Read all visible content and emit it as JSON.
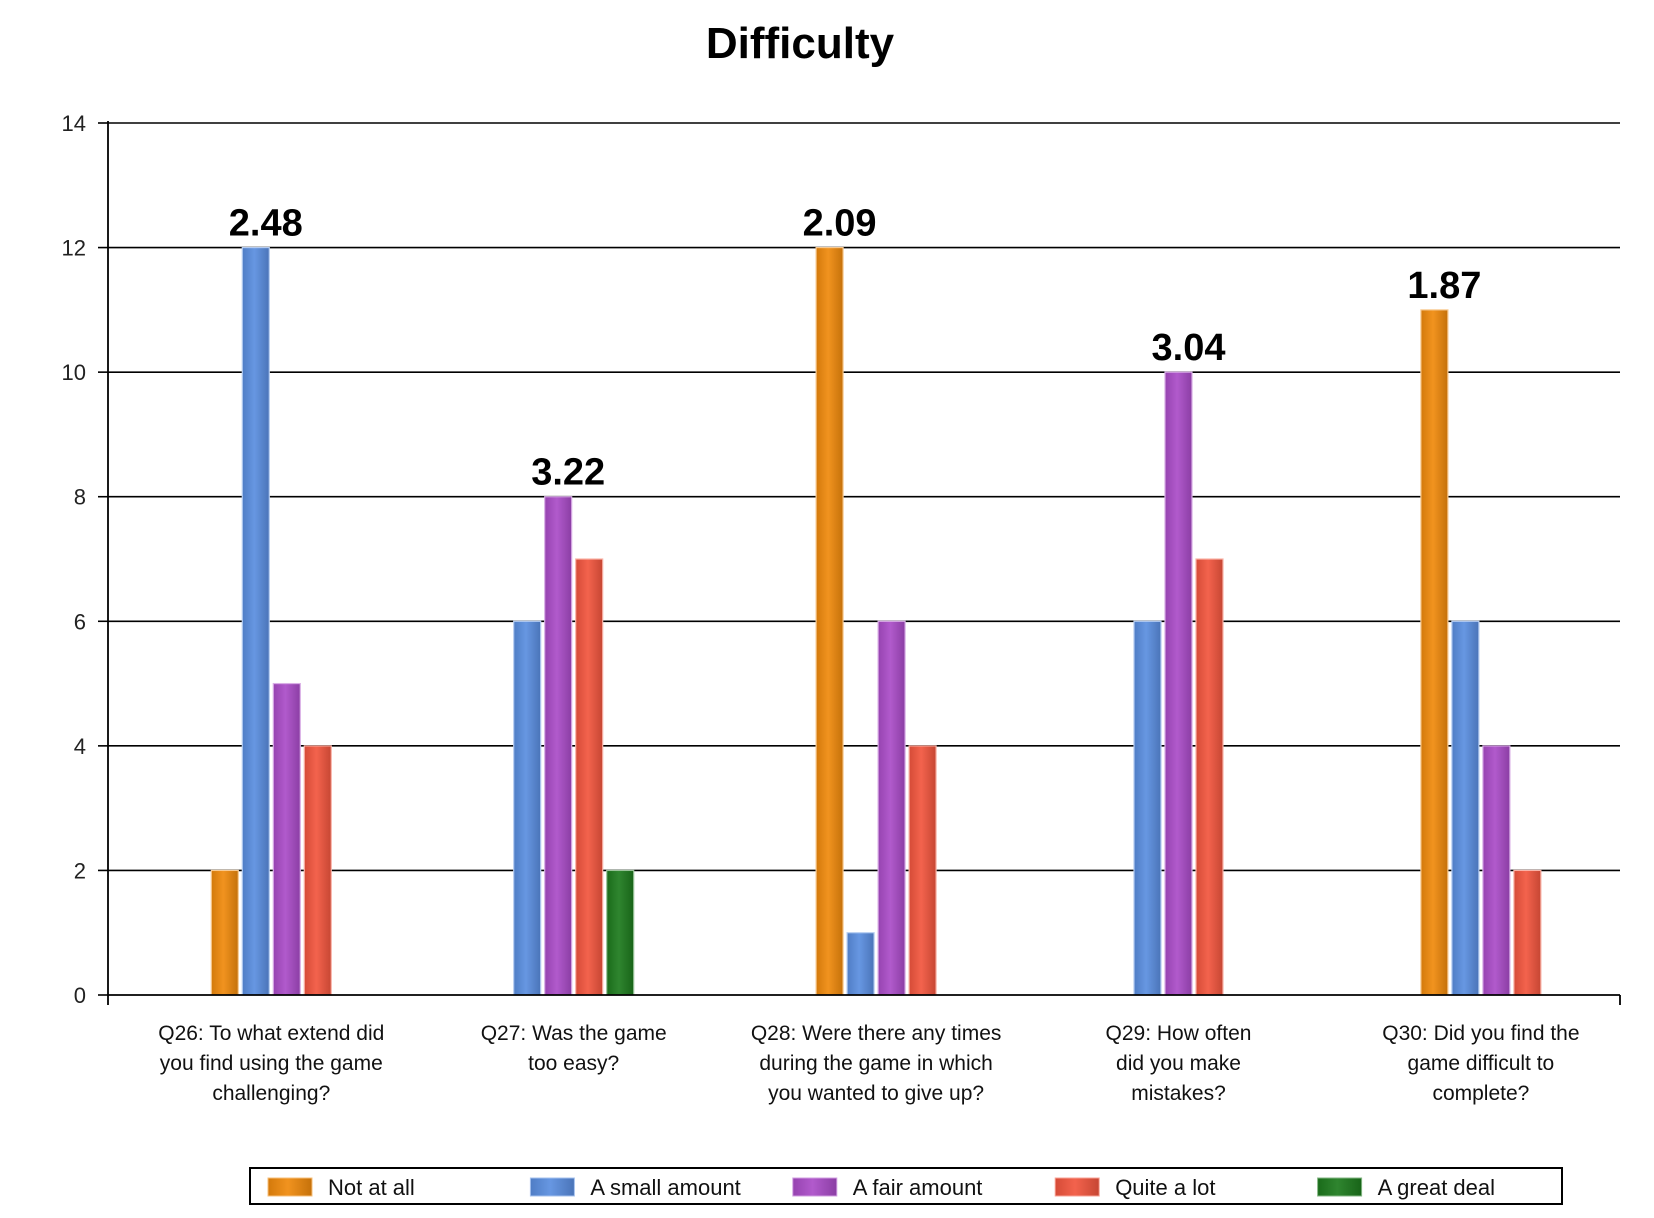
{
  "chart_data": {
    "type": "bar",
    "title": "Difficulty",
    "xlabel": "",
    "ylabel": "",
    "ylim": [
      0,
      14
    ],
    "yticks": [
      0,
      2,
      4,
      6,
      8,
      10,
      12,
      14
    ],
    "grid": true,
    "legend_position": "bottom",
    "categories": [
      [
        "Q26: To what extend did",
        "you find using the game",
        "challenging?"
      ],
      [
        "Q27: Was the game",
        "too easy?"
      ],
      [
        "Q28: Were there any times",
        "during the game in which",
        "you wanted to give up?"
      ],
      [
        "Q29: How often",
        "did you make",
        "mistakes?"
      ],
      [
        "Q30: Did you find the",
        "game difficult to",
        "complete?"
      ]
    ],
    "series": [
      {
        "name": "Not at all",
        "color": "#f08a0c",
        "values": [
          2,
          0,
          12,
          0,
          11
        ]
      },
      {
        "name": "A small amount",
        "color": "#5a8ee0",
        "values": [
          12,
          6,
          1,
          6,
          6
        ]
      },
      {
        "name": "A fair amount",
        "color": "#aa4cc8",
        "values": [
          5,
          8,
          6,
          10,
          4
        ]
      },
      {
        "name": "Quite a lot",
        "color": "#f2553e",
        "values": [
          4,
          7,
          4,
          7,
          2
        ]
      },
      {
        "name": "A great deal",
        "color": "#1d7a1d",
        "values": [
          0,
          2,
          0,
          0,
          0
        ]
      }
    ],
    "annotations": [
      {
        "category_index": 0,
        "text": "2.48"
      },
      {
        "category_index": 1,
        "text": "3.22"
      },
      {
        "category_index": 2,
        "text": "2.09"
      },
      {
        "category_index": 3,
        "text": "3.04"
      },
      {
        "category_index": 4,
        "text": "1.87"
      }
    ]
  }
}
